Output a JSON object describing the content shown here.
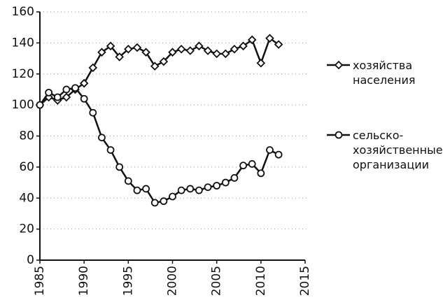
{
  "chart_data": {
    "type": "line",
    "x": [
      1985,
      1986,
      1987,
      1988,
      1989,
      1990,
      1991,
      1992,
      1993,
      1994,
      1995,
      1996,
      1997,
      1998,
      1999,
      2000,
      2001,
      2002,
      2003,
      2004,
      2005,
      2006,
      2007,
      2008,
      2009,
      2010,
      2011,
      2012
    ],
    "series": [
      {
        "name": "хозяйства населения",
        "color": "#111111",
        "marker": "diamond",
        "values": [
          100,
          105,
          103,
          105,
          110,
          114,
          124,
          134,
          138,
          131,
          136,
          137,
          134,
          125,
          128,
          134,
          136,
          135,
          138,
          135,
          133,
          133,
          136,
          138,
          142,
          127,
          143,
          139
        ]
      },
      {
        "name": "сельско-хозяйственные организации",
        "color": "#111111",
        "marker": "circle",
        "values": [
          100,
          108,
          105,
          110,
          111,
          104,
          95,
          79,
          71,
          60,
          51,
          45,
          46,
          37,
          38,
          41,
          45,
          46,
          45,
          47,
          48,
          50,
          53,
          61,
          62,
          56,
          71,
          68
        ]
      }
    ],
    "xlim": [
      1985,
      2015
    ],
    "xticks": [
      1985,
      1990,
      1995,
      2000,
      2005,
      2010,
      2015
    ],
    "ylim": [
      0,
      160
    ],
    "yticks": [
      0,
      20,
      40,
      60,
      80,
      100,
      120,
      140,
      160
    ],
    "grid": true,
    "legend": "right"
  }
}
